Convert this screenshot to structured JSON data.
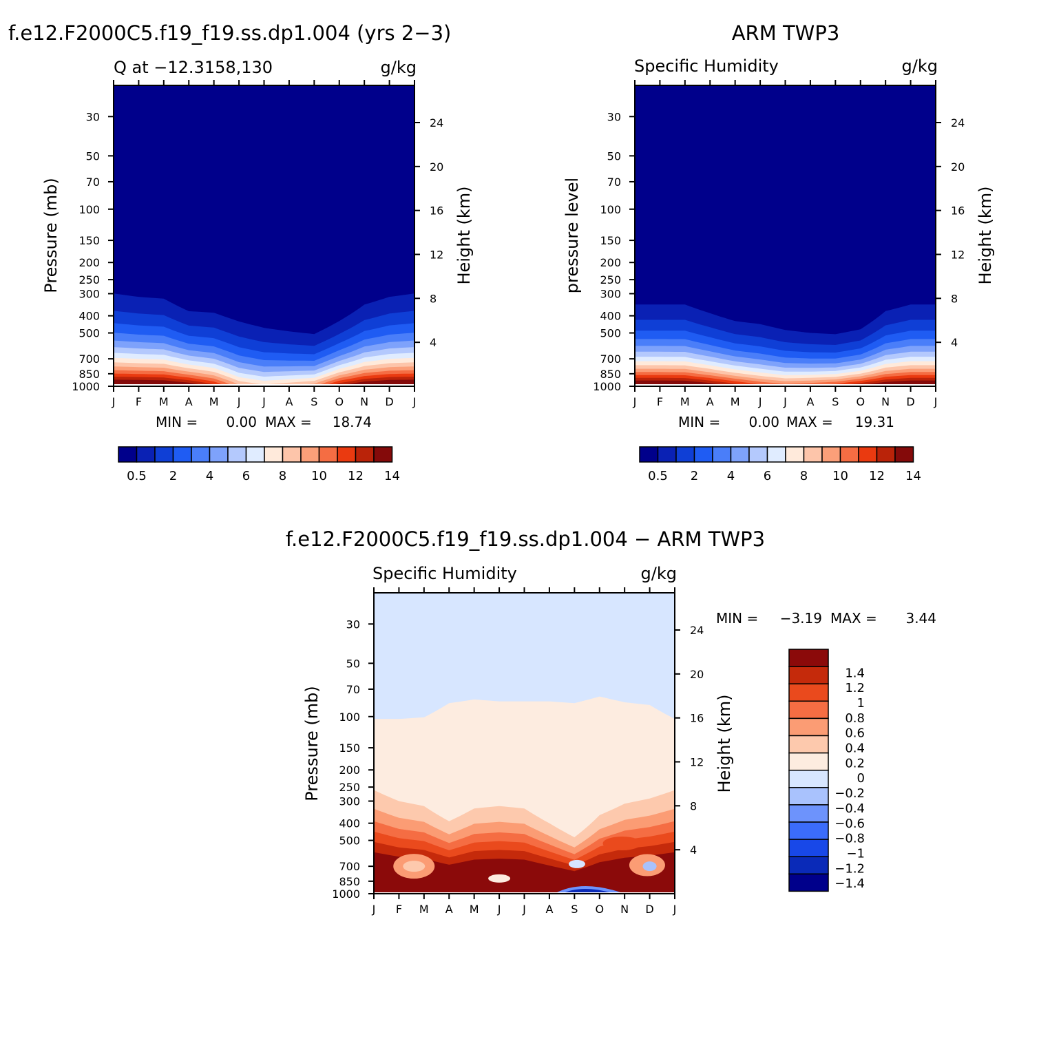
{
  "colors": {
    "frame": "#000000",
    "background": "#ffffff",
    "abs_palette": [
      "#00008b",
      "#0a21b4",
      "#0f3fd6",
      "#1f5cf3",
      "#4a7ef9",
      "#7ea2fb",
      "#b4c9fd",
      "#e0ecff",
      "#ffeadb",
      "#fdc5aa",
      "#fb9f79",
      "#f56d43",
      "#ea3a10",
      "#ba2309",
      "#840a0a"
    ],
    "diff_palette": [
      "#00008b",
      "#0a2ab8",
      "#1848e8",
      "#3b6cfb",
      "#6d93fc",
      "#a9c2fd",
      "#d7e6ff",
      "#fdece0",
      "#fdc9ad",
      "#fb9c74",
      "#f56d43",
      "#ea4a1d",
      "#c52a0b",
      "#8b0a0a"
    ]
  },
  "chart_data": [
    {
      "id": "model",
      "type": "heatmap",
      "title": "f.e12.F2000C5.f19_f19.ss.dp1.004 (yrs 2−3)",
      "subtitle_left": "Q at −12.3158,130",
      "subtitle_right": "g/kg",
      "ylabel": "Pressure (mb)",
      "ylabel_right": "Height (km)",
      "x_ticks": [
        "J",
        "F",
        "M",
        "A",
        "M",
        "J",
        "J",
        "A",
        "S",
        "O",
        "N",
        "D",
        "J"
      ],
      "y_ticks": [
        "30",
        "50",
        "70",
        "100",
        "150",
        "200",
        "250",
        "300",
        "400",
        "500",
        "700",
        "850",
        "1000"
      ],
      "y_tick_values": [
        30,
        50,
        70,
        100,
        150,
        200,
        250,
        300,
        400,
        500,
        700,
        850,
        1000
      ],
      "height_ticks": [
        "24",
        "20",
        "16",
        "12",
        "8",
        "4"
      ],
      "height_tick_values": [
        24,
        20,
        16,
        12,
        8,
        4
      ],
      "ylim": [
        20,
        1000
      ],
      "min_label": "MIN =",
      "min_value": "0.00",
      "max_label": "MAX =",
      "max_value": "18.74",
      "colorbar_labels": [
        "0.5",
        "2",
        "4",
        "6",
        "8",
        "10",
        "12",
        "14"
      ],
      "field": {
        "months": [
          "J",
          "F",
          "M",
          "A",
          "M",
          "J",
          "J",
          "A",
          "S",
          "O",
          "N",
          "D",
          "J"
        ],
        "moist_top_pressure": [
          255,
          268,
          275,
          330,
          335,
          375,
          410,
          435,
          455,
          380,
          300,
          268,
          255
        ],
        "surface_q": [
          16.5,
          16.5,
          16.4,
          15.6,
          13.8,
          10.5,
          9.5,
          10.2,
          11.0,
          14.5,
          16.0,
          16.5,
          16.5
        ],
        "min_q_at_top": 0.0
      }
    },
    {
      "id": "obs",
      "type": "heatmap",
      "title": "ARM TWP3",
      "subtitle_left": "Specific Humidity",
      "subtitle_right": "g/kg",
      "ylabel": "pressure level",
      "ylabel_right": "Height (km)",
      "x_ticks": [
        "J",
        "F",
        "M",
        "A",
        "M",
        "J",
        "J",
        "A",
        "S",
        "O",
        "N",
        "D",
        "J"
      ],
      "y_ticks": [
        "30",
        "50",
        "70",
        "100",
        "150",
        "200",
        "250",
        "300",
        "400",
        "500",
        "700",
        "850",
        "1000"
      ],
      "y_tick_values": [
        30,
        50,
        70,
        100,
        150,
        200,
        250,
        300,
        400,
        500,
        700,
        850,
        1000
      ],
      "height_ticks": [
        "24",
        "20",
        "16",
        "12",
        "8",
        "4"
      ],
      "height_tick_values": [
        24,
        20,
        16,
        12,
        8,
        4
      ],
      "ylim": [
        20,
        1000
      ],
      "min_label": "MIN =",
      "min_value": "0.00",
      "max_label": "MAX =",
      "max_value": "19.31",
      "colorbar_labels": [
        "0.5",
        "2",
        "4",
        "6",
        "8",
        "10",
        "12",
        "14"
      ],
      "field": {
        "months": [
          "J",
          "F",
          "M",
          "A",
          "M",
          "J",
          "J",
          "A",
          "S",
          "O",
          "N",
          "D",
          "J"
        ],
        "moist_top_pressure": [
          300,
          300,
          300,
          340,
          380,
          395,
          430,
          450,
          460,
          430,
          330,
          300,
          300
        ],
        "surface_q": [
          16.5,
          16.5,
          16.4,
          15.5,
          14.2,
          12.8,
          12.0,
          12.5,
          13.2,
          14.8,
          16.0,
          16.5,
          16.5
        ],
        "min_q_at_top": 0.0
      }
    },
    {
      "id": "diff",
      "type": "heatmap",
      "title": "f.e12.F2000C5.f19_f19.ss.dp1.004 − ARM TWP3",
      "subtitle_left": "Specific Humidity",
      "subtitle_right": "g/kg",
      "ylabel": "Pressure (mb)",
      "ylabel_right": "Height (km)",
      "x_ticks": [
        "J",
        "F",
        "M",
        "A",
        "M",
        "J",
        "J",
        "A",
        "S",
        "O",
        "N",
        "D",
        "J"
      ],
      "y_ticks": [
        "30",
        "50",
        "70",
        "100",
        "150",
        "200",
        "250",
        "300",
        "400",
        "500",
        "700",
        "850",
        "1000"
      ],
      "y_tick_values": [
        30,
        50,
        70,
        100,
        150,
        200,
        250,
        300,
        400,
        500,
        700,
        850,
        1000
      ],
      "height_ticks": [
        "24",
        "20",
        "16",
        "12",
        "8",
        "4"
      ],
      "height_tick_values": [
        24,
        20,
        16,
        12,
        8,
        4
      ],
      "ylim": [
        20,
        1000
      ],
      "min_label": "MIN =",
      "min_value": "−3.19",
      "max_label": "MAX =",
      "max_value": "3.44",
      "colorbar_labels": [
        "1.4",
        "1.2",
        "1",
        "0.8",
        "0.6",
        "0.4",
        "0.2",
        "0",
        "−0.2",
        "−0.4",
        "−0.6",
        "−0.8",
        "−1",
        "−1.2",
        "−1.4"
      ],
      "field": {
        "months": [
          "J",
          "F",
          "M",
          "A",
          "M",
          "J",
          "J",
          "A",
          "S",
          "O",
          "N",
          "D",
          "J"
        ],
        "zero_line_pressure": [
          103,
          103,
          101,
          84,
          80,
          82,
          82,
          82,
          84,
          77,
          83,
          86,
          103
        ],
        "positive_layers_pressure": [
          260,
          300,
          320,
          390,
          330,
          320,
          330,
          400,
          480,
          360,
          310,
          290,
          260
        ]
      }
    }
  ]
}
